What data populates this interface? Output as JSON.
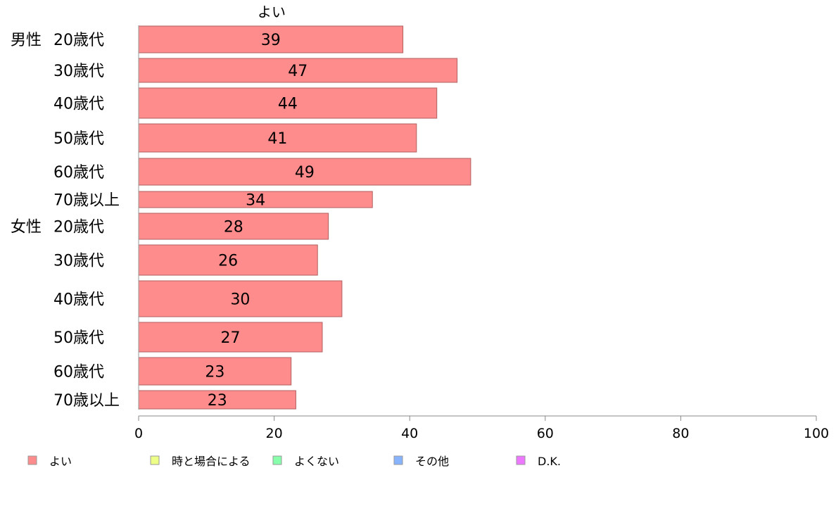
{
  "chart_data": {
    "type": "bar",
    "orientation": "horizontal",
    "series_header": "よい",
    "groups": [
      {
        "label": "男性",
        "rows": [
          {
            "category": "20歳代",
            "value": 39,
            "value_label": "39"
          },
          {
            "category": "30歳代",
            "value": 47,
            "value_label": "47"
          },
          {
            "category": "40歳代",
            "value": 44,
            "value_label": "44"
          },
          {
            "category": "50歳代",
            "value": 41,
            "value_label": "41"
          },
          {
            "category": "60歳代",
            "value": 49,
            "value_label": "49"
          },
          {
            "category": "70歳以上",
            "value": 34.5,
            "value_label": "34"
          }
        ]
      },
      {
        "label": "女性",
        "rows": [
          {
            "category": "20歳代",
            "value": 28,
            "value_label": "28"
          },
          {
            "category": "30歳代",
            "value": 26.4,
            "value_label": "26"
          },
          {
            "category": "40歳代",
            "value": 30,
            "value_label": "30"
          },
          {
            "category": "50歳代",
            "value": 27.1,
            "value_label": "27"
          },
          {
            "category": "60歳代",
            "value": 22.5,
            "value_label": "23"
          },
          {
            "category": "70歳以上",
            "value": 23.2,
            "value_label": "23"
          }
        ]
      }
    ],
    "xlim": [
      0,
      100
    ],
    "xticks": [
      "0",
      "20",
      "40",
      "60",
      "80",
      "100"
    ],
    "legend": {
      "placement": "bottom",
      "items": [
        {
          "label": "よい",
          "color": "#ff8c8c"
        },
        {
          "label": "時と場合による",
          "color": "#eeff88"
        },
        {
          "label": "よくない",
          "color": "#88ffaa"
        },
        {
          "label": "その他",
          "color": "#88b4ff"
        },
        {
          "label": "D.K.",
          "color": "#ee77ff"
        }
      ]
    },
    "colors": {
      "bar_fill": "#ff8c8c",
      "bar_stroke": "#b06060",
      "axis": "#888888"
    },
    "grid": false
  }
}
